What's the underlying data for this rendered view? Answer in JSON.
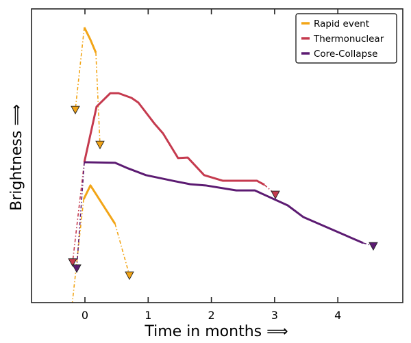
{
  "chart_data": {
    "type": "line",
    "title": "",
    "xlabel": "Time in months ⟹",
    "ylabel": "Brightness ⟹",
    "xlim": [
      -0.84,
      5.03
    ],
    "ylim": [
      0,
      1
    ],
    "x_ticks": [
      0,
      1,
      2,
      3,
      4
    ],
    "x_tick_labels": [
      "0",
      "1",
      "2",
      "3",
      "4"
    ],
    "y_ticks": [],
    "grid": false,
    "legend_position": "top-right",
    "series": [
      {
        "name": "Rapid event",
        "color": "#f2a517",
        "segments": [
          {
            "solid": [
              [
                -0.01,
                0.937
              ],
              [
                0.087,
                0.895
              ],
              [
                0.173,
                0.851
              ]
            ],
            "limits_before": [
              [
                -0.152,
                0.657
              ]
            ],
            "limits_after": [
              [
                0.238,
                0.538
              ]
            ]
          },
          {
            "solid": [
              [
                -0.02,
                0.352
              ],
              [
                0.087,
                0.399
              ],
              [
                0.477,
                0.268
              ]
            ],
            "limits_before": [
              [
                -0.23,
                -0.06
              ]
            ],
            "limits_after": [
              [
                0.704,
                0.093
              ]
            ]
          }
        ],
        "limit_markers": [
          [
            -0.152,
            0.657
          ],
          [
            0.238,
            0.538
          ],
          [
            0.704,
            0.093
          ]
        ]
      },
      {
        "name": "Thermonuclear",
        "color": "#c53a4e",
        "segments": [
          {
            "solid": [
              [
                -0.01,
                0.478
              ],
              [
                0.184,
                0.667
              ],
              [
                0.401,
                0.713
              ],
              [
                0.531,
                0.713
              ],
              [
                0.737,
                0.697
              ],
              [
                0.845,
                0.681
              ],
              [
                1.105,
                0.608
              ],
              [
                1.235,
                0.576
              ],
              [
                1.473,
                0.492
              ],
              [
                1.625,
                0.494
              ],
              [
                1.885,
                0.434
              ],
              [
                2.178,
                0.415
              ],
              [
                2.719,
                0.415
              ],
              [
                2.839,
                0.401
              ]
            ],
            "limits_before": [
              [
                -0.195,
                0.138
              ]
            ],
            "limits_after": [
              [
                3.012,
                0.368
              ]
            ]
          }
        ],
        "limit_markers": [
          [
            -0.195,
            0.138
          ],
          [
            3.012,
            0.368
          ]
        ]
      },
      {
        "name": "Core-Collapse",
        "color": "#5c1b72",
        "segments": [
          {
            "solid": [
              [
                -0.01,
                0.478
              ],
              [
                0.477,
                0.476
              ],
              [
                0.683,
                0.457
              ],
              [
                0.964,
                0.434
              ],
              [
                1.43,
                0.413
              ],
              [
                1.668,
                0.403
              ],
              [
                1.907,
                0.399
              ],
              [
                2.394,
                0.382
              ],
              [
                2.687,
                0.382
              ],
              [
                3.207,
                0.331
              ],
              [
                3.456,
                0.291
              ],
              [
                4.399,
                0.203
              ]
            ],
            "limits_before": [
              [
                -0.13,
                0.117
              ]
            ],
            "limits_after": [
              [
                4.561,
                0.193
              ]
            ]
          }
        ],
        "limit_markers": [
          [
            -0.13,
            0.117
          ],
          [
            4.561,
            0.193
          ]
        ]
      }
    ]
  }
}
